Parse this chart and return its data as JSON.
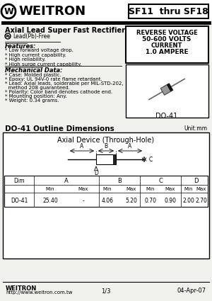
{
  "title": "SF11  thru SF18",
  "company": "WEITRON",
  "product": "Axial Lead Super Fast Rectifier",
  "pb_free": "Lead(Pb)-Free",
  "features_title": "Features:",
  "features": [
    "* Low forward voltage drop.",
    "* High current capability.",
    "* High reliability.",
    "* High surge current capability."
  ],
  "spec_box": [
    "REVERSE VOLTAGE",
    "50-600 VOLTS",
    "CURRENT",
    "1.0 AMPERE"
  ],
  "package": "DO-41",
  "mech_title": "Mechanical Data:",
  "mech_items": [
    "* Case: Molded plastic.",
    "* Epoxy: UL 94V-0 rate flame retardant.",
    "* Lead: Axial leads, solderable per MIL-STD-202,",
    "  method 208 guaranteed.",
    "* Polarity: Color band denotes cathode end.",
    "* Mounting position: Any.",
    "* Weight: 0.34 grams."
  ],
  "outline_title": "DO-41 Outline Dimensions",
  "unit": "Unit:mm",
  "axial_title": "Axial Device (Through-Hole)",
  "table_row": [
    "DO-41",
    "25.40",
    "-",
    "4.06",
    "5.20",
    "0.70",
    "0.90",
    "2.00",
    "2.70"
  ],
  "footer_company": "WEITRON",
  "footer_url": "http://www.weitron.com.tw",
  "footer_page": "1/3",
  "footer_date": "04-Apr-07",
  "bg_color": "#f0f0ec"
}
